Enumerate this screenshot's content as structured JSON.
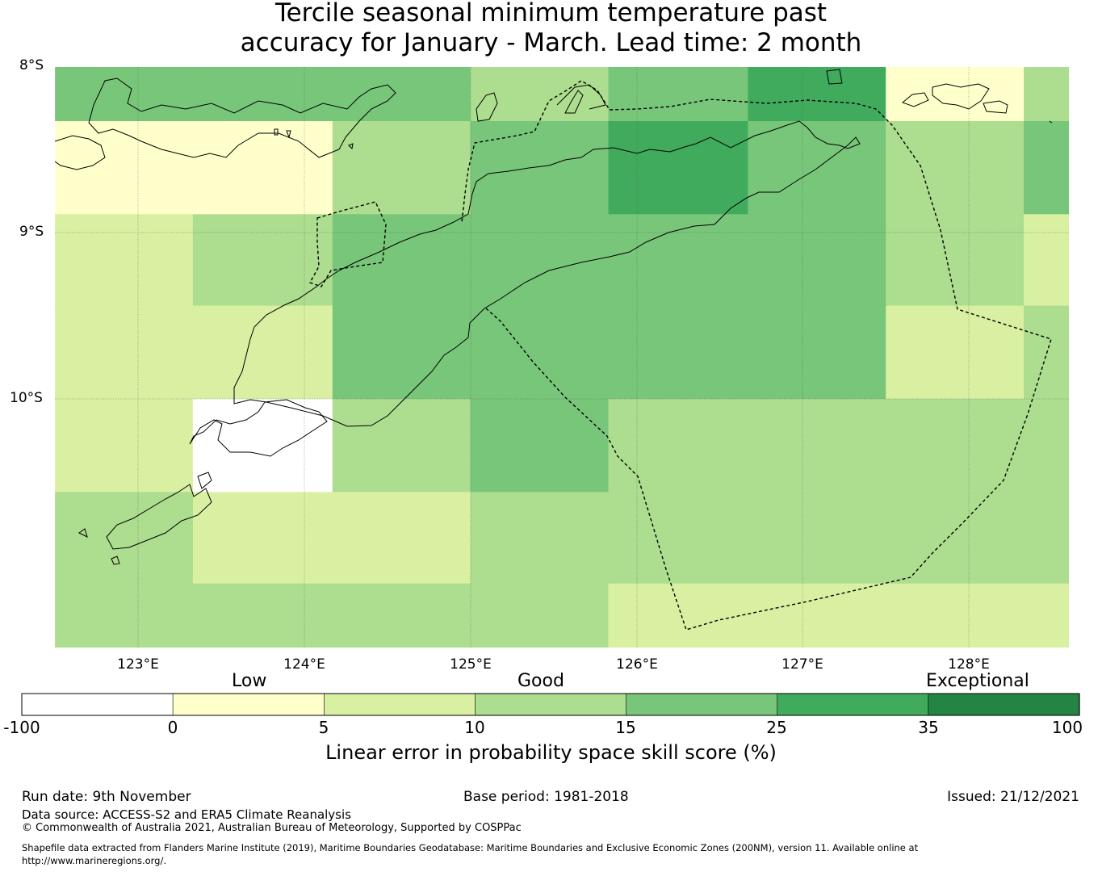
{
  "title": {
    "line1": "Tercile seasonal minimum temperature past",
    "line2": "accuracy for January - March. Lead time: 2 month"
  },
  "map": {
    "lat_labels": [
      "8°S",
      "9°S",
      "10°S"
    ],
    "lon_labels": [
      "123°E",
      "124°E",
      "125°E",
      "126°E",
      "127°E",
      "128°E"
    ],
    "features": [
      "coastline",
      "maritime-boundary-dashed",
      "graticule"
    ]
  },
  "legend": {
    "categories": [
      "Low",
      "Good",
      "Exceptional"
    ],
    "ticks": [
      "-100",
      "0",
      "5",
      "10",
      "15",
      "25",
      "35",
      "100"
    ],
    "colors": [
      "#ffffff",
      "#ffffcc",
      "#d9f0a3",
      "#addd8e",
      "#78c679",
      "#41ab5d",
      "#238443"
    ],
    "label": "Linear error in probability space skill score (%)"
  },
  "footer": {
    "run_date": "Run date: 9th November",
    "base_period": "Base period: 1981-2018",
    "issued": "Issued: 21/12/2021",
    "data_source": "Data source: ACCESS-S2 and ERA5 Climate Reanalysis",
    "copyright": "© Commonwealth of Australia 2021, Australian Bureau of Meteorology, Supported by COSPPac",
    "shapefile_line1": "Shapefile data extracted from Flanders Marine Institute (2019), Maritime Boundaries Geodatabase: Maritime Boundaries and Exclusive Economic Zones (200NM), version 11. Available online at",
    "shapefile_line2": "http://www.marineregions.org/."
  },
  "grid": {
    "lon_edges": [
      122.5,
      123.33,
      124.17,
      125.0,
      125.83,
      126.67,
      127.5,
      128.33,
      128.6
    ],
    "lat_edges": [
      -7.97,
      -8.33,
      -8.89,
      -9.44,
      -10.0,
      -10.56,
      -11.11,
      -11.5
    ],
    "class_indices": [
      [
        4,
        4,
        4,
        3,
        4,
        5,
        1,
        3
      ],
      [
        1,
        1,
        3,
        4,
        5,
        4,
        3,
        4
      ],
      [
        2,
        3,
        4,
        4,
        4,
        4,
        3,
        2
      ],
      [
        2,
        2,
        4,
        4,
        4,
        4,
        2,
        3
      ],
      [
        2,
        0,
        3,
        4,
        3,
        3,
        3,
        3
      ],
      [
        3,
        2,
        2,
        3,
        3,
        3,
        3,
        3
      ],
      [
        3,
        3,
        3,
        3,
        2,
        2,
        2,
        2
      ]
    ]
  }
}
